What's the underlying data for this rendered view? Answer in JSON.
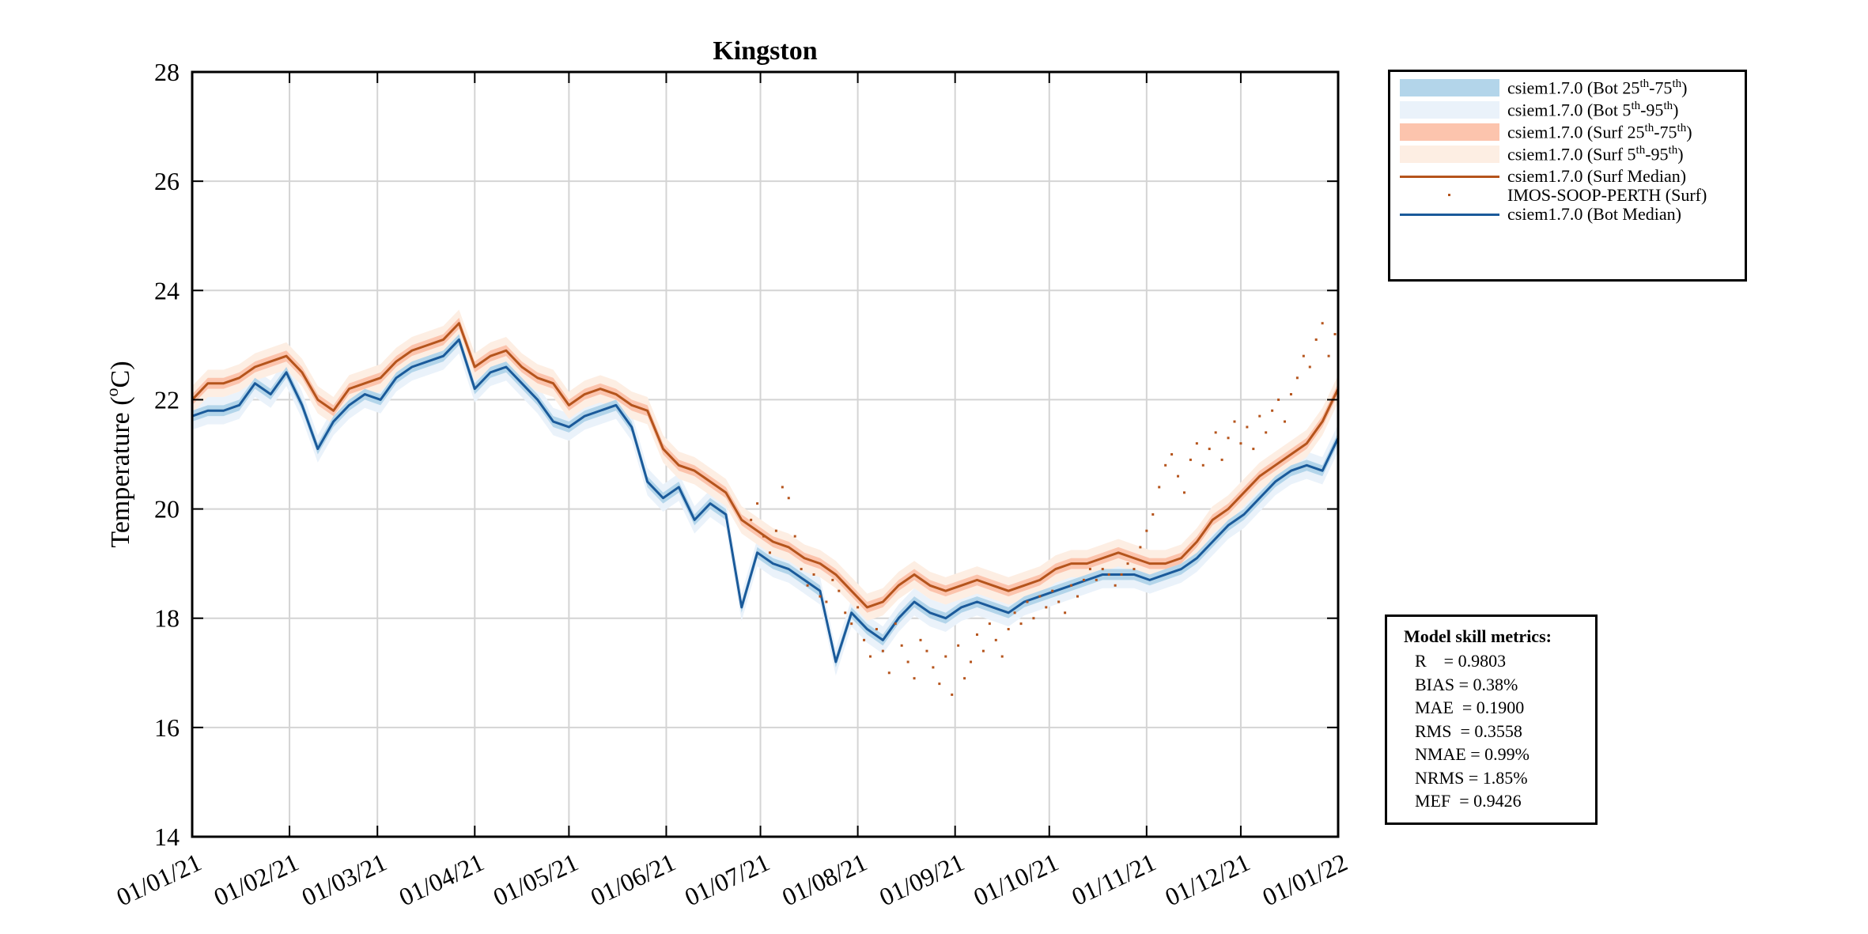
{
  "chart_data": {
    "type": "line",
    "title": "Kingston",
    "ylabel": "Temperature (°C)",
    "ylabel_main": "Temperature (",
    "ylabel_unit": "C)",
    "ylabel_degree": "o",
    "xlabel": "",
    "ylim": [
      14,
      28
    ],
    "yticks": [
      14,
      16,
      18,
      20,
      22,
      24,
      26,
      28
    ],
    "xtick_labels": [
      "01/01/21",
      "01/02/21",
      "01/03/21",
      "01/04/21",
      "01/05/21",
      "01/06/21",
      "01/07/21",
      "01/08/21",
      "01/09/21",
      "01/10/21",
      "01/11/21",
      "01/12/21",
      "01/01/22"
    ],
    "xtick_days": [
      0,
      31,
      59,
      90,
      120,
      151,
      181,
      212,
      243,
      273,
      304,
      334,
      365
    ],
    "grid": true,
    "legend_position": "outside-top-right",
    "series": [
      {
        "name": "csiem1.7.0 (Surf Median)",
        "kind": "line",
        "color": "#b5541c",
        "x": [
          0,
          5,
          10,
          15,
          20,
          25,
          30,
          35,
          40,
          45,
          50,
          55,
          60,
          65,
          70,
          75,
          80,
          85,
          90,
          95,
          100,
          105,
          110,
          115,
          120,
          125,
          130,
          135,
          140,
          145,
          150,
          155,
          160,
          165,
          170,
          175,
          180,
          185,
          190,
          195,
          200,
          205,
          210,
          215,
          220,
          225,
          230,
          235,
          240,
          245,
          250,
          255,
          260,
          265,
          270,
          275,
          280,
          285,
          290,
          295,
          300,
          305,
          310,
          315,
          320,
          325,
          330,
          335,
          340,
          345,
          350,
          355,
          360,
          365
        ],
        "y": [
          22.0,
          22.3,
          22.3,
          22.4,
          22.6,
          22.7,
          22.8,
          22.5,
          22.0,
          21.8,
          22.2,
          22.3,
          22.4,
          22.7,
          22.9,
          23.0,
          23.1,
          23.4,
          22.6,
          22.8,
          22.9,
          22.6,
          22.4,
          22.3,
          21.9,
          22.1,
          22.2,
          22.1,
          21.9,
          21.8,
          21.1,
          20.8,
          20.7,
          20.5,
          20.3,
          19.8,
          19.6,
          19.4,
          19.3,
          19.1,
          19.0,
          18.8,
          18.5,
          18.2,
          18.3,
          18.6,
          18.8,
          18.6,
          18.5,
          18.6,
          18.7,
          18.6,
          18.5,
          18.6,
          18.7,
          18.9,
          19.0,
          19.0,
          19.1,
          19.2,
          19.1,
          19.0,
          19.0,
          19.1,
          19.4,
          19.8,
          20.0,
          20.3,
          20.6,
          20.8,
          21.0,
          21.2,
          21.6,
          22.2
        ]
      },
      {
        "name": "IMOS-SOOP-PERTH (Surf)",
        "kind": "points",
        "color": "#b5541c",
        "x": [
          178,
          180,
          182,
          184,
          186,
          188,
          190,
          192,
          194,
          196,
          198,
          200,
          202,
          204,
          206,
          208,
          210,
          212,
          214,
          216,
          218,
          220,
          222,
          224,
          226,
          228,
          230,
          232,
          234,
          236,
          238,
          240,
          242,
          244,
          246,
          248,
          250,
          252,
          254,
          256,
          258,
          260,
          262,
          264,
          266,
          268,
          270,
          272,
          274,
          276,
          278,
          280,
          282,
          284,
          286,
          288,
          290,
          292,
          294,
          296,
          298,
          300,
          302,
          304,
          306,
          308,
          310,
          312,
          314,
          316,
          318,
          320,
          322,
          324,
          326,
          328,
          330,
          332,
          334,
          336,
          338,
          340,
          342,
          344,
          346,
          348,
          350,
          352,
          354,
          356,
          358,
          360,
          362,
          364
        ],
        "y": [
          19.8,
          20.1,
          19.5,
          19.2,
          19.6,
          20.4,
          20.2,
          19.5,
          18.9,
          18.6,
          18.8,
          18.4,
          18.3,
          18.7,
          18.5,
          18.1,
          17.9,
          18.2,
          17.6,
          17.3,
          17.8,
          17.4,
          17.0,
          17.9,
          17.5,
          17.2,
          16.9,
          17.6,
          17.4,
          17.1,
          16.8,
          17.3,
          16.6,
          17.5,
          16.9,
          17.2,
          17.7,
          17.4,
          17.9,
          17.6,
          17.3,
          17.8,
          18.1,
          17.9,
          18.3,
          18.0,
          18.4,
          18.2,
          18.5,
          18.3,
          18.1,
          18.6,
          18.4,
          18.7,
          18.9,
          18.7,
          18.9,
          18.8,
          18.6,
          18.8,
          19.0,
          18.9,
          19.3,
          19.6,
          19.9,
          20.4,
          20.8,
          21.0,
          20.6,
          20.3,
          20.9,
          21.2,
          20.8,
          21.1,
          21.4,
          20.9,
          21.3,
          21.6,
          21.2,
          21.5,
          21.1,
          21.7,
          21.4,
          21.8,
          22.0,
          21.6,
          22.1,
          22.4,
          22.8,
          22.6,
          23.1,
          23.4,
          22.8,
          23.2
        ]
      },
      {
        "name": "csiem1.7.0 (Bot Median)",
        "kind": "line",
        "color": "#1a5a9a",
        "x": [
          0,
          5,
          10,
          15,
          20,
          25,
          30,
          35,
          40,
          45,
          50,
          55,
          60,
          65,
          70,
          75,
          80,
          85,
          90,
          95,
          100,
          105,
          110,
          115,
          120,
          125,
          130,
          135,
          140,
          145,
          150,
          155,
          160,
          165,
          170,
          175,
          180,
          185,
          190,
          195,
          200,
          205,
          210,
          215,
          220,
          225,
          230,
          235,
          240,
          245,
          250,
          255,
          260,
          265,
          270,
          275,
          280,
          285,
          290,
          295,
          300,
          305,
          310,
          315,
          320,
          325,
          330,
          335,
          340,
          345,
          350,
          355,
          360,
          365
        ],
        "y": [
          21.7,
          21.8,
          21.8,
          21.9,
          22.3,
          22.1,
          22.5,
          21.9,
          21.1,
          21.6,
          21.9,
          22.1,
          22.0,
          22.4,
          22.6,
          22.7,
          22.8,
          23.1,
          22.2,
          22.5,
          22.6,
          22.3,
          22.0,
          21.6,
          21.5,
          21.7,
          21.8,
          21.9,
          21.5,
          20.5,
          20.2,
          20.4,
          19.8,
          20.1,
          19.9,
          18.2,
          19.2,
          19.0,
          18.9,
          18.7,
          18.5,
          17.2,
          18.1,
          17.8,
          17.6,
          18.0,
          18.3,
          18.1,
          18.0,
          18.2,
          18.3,
          18.2,
          18.1,
          18.3,
          18.4,
          18.5,
          18.6,
          18.7,
          18.8,
          18.8,
          18.8,
          18.7,
          18.8,
          18.9,
          19.1,
          19.4,
          19.7,
          19.9,
          20.2,
          20.5,
          20.7,
          20.8,
          20.7,
          21.3
        ]
      }
    ],
    "legend_entries": [
      {
        "label": "csiem1.7.0 (Bot 25",
        "sup1": "th",
        "mid": "-75",
        "sup2": "th",
        "end": ")",
        "kind": "band",
        "color": "#b3d5ea"
      },
      {
        "label": "csiem1.7.0 (Bot 5",
        "sup1": "th",
        "mid": "-95",
        "sup2": "th",
        "end": ")",
        "kind": "band",
        "color": "#eaf2fa"
      },
      {
        "label": "csiem1.7.0 (Surf 25",
        "sup1": "th",
        "mid": "-75",
        "sup2": "th",
        "end": ")",
        "kind": "band",
        "color": "#fcc4ad"
      },
      {
        "label": "csiem1.7.0 (Surf 5",
        "sup1": "th",
        "mid": "-95",
        "sup2": "th",
        "end": ")",
        "kind": "band",
        "color": "#fdeee3"
      },
      {
        "label": "csiem1.7.0 (Surf Median)",
        "kind": "line",
        "color": "#b5541c"
      },
      {
        "label": "IMOS-SOOP-PERTH (Surf)",
        "kind": "dot",
        "color": "#b5541c"
      },
      {
        "label": "csiem1.7.0 (Bot Median)",
        "kind": "line",
        "color": "#1a5a9a"
      }
    ]
  },
  "metrics": {
    "title": "Model skill metrics:",
    "lines": [
      "R    = 0.9803",
      "BIAS = 0.38%",
      "MAE  = 0.1900",
      "RMS  = 0.3558",
      "NMAE = 0.99%",
      "NRMS = 1.85%",
      "MEF  = 0.9426"
    ]
  }
}
